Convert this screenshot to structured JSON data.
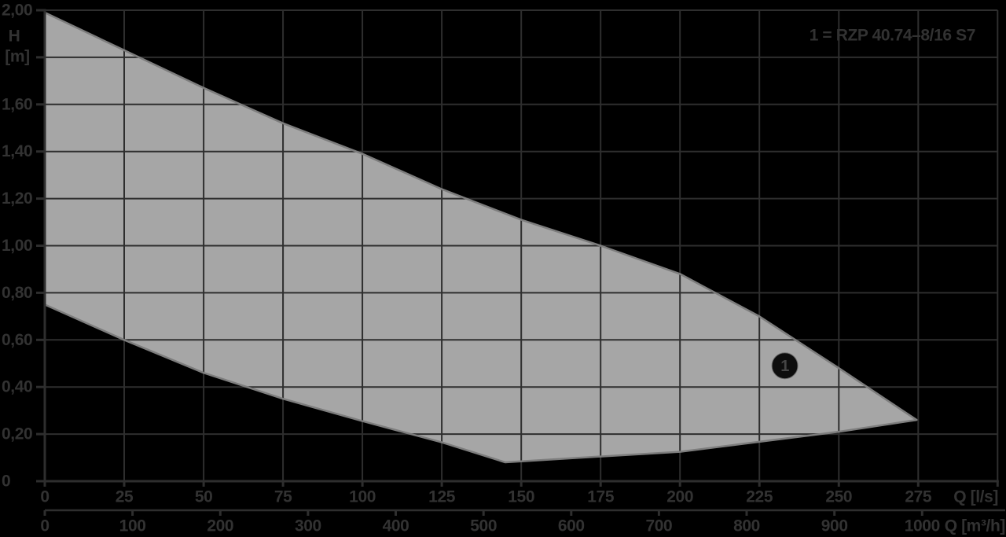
{
  "style": {
    "background": "#000000",
    "text": "#323232",
    "grid": "#2e2e2e",
    "axis": "#2e2e2e",
    "envelope_fill": "#a6a6a6",
    "envelope_stroke": "#7d7d7d",
    "marker_fill": "#0d0d0d",
    "marker_ring": "#6f6f6f",
    "marker_text": "#454545"
  },
  "chart_data": {
    "type": "area",
    "title": "",
    "description": "Pump operating envelope: head H [m] versus flow Q, dual flow axes in l/s and m³/h",
    "legend_text": "1 =  RZP 40.74–8/16 S7",
    "legend_entries": [
      {
        "id": "1",
        "label": "RZP 40.74–8/16 S7"
      }
    ],
    "grid": true,
    "y_axis": {
      "symbol": "H",
      "unit": "[m]",
      "range": [
        0,
        2.0
      ],
      "step": 0.2,
      "ticks": [
        {
          "h": 2.0,
          "label": "2,00"
        },
        {
          "h": 1.8,
          "label": ""
        },
        {
          "h": 1.6,
          "label": "1,60"
        },
        {
          "h": 1.4,
          "label": "1,40"
        },
        {
          "h": 1.2,
          "label": "1,20"
        },
        {
          "h": 1.0,
          "label": "1,00"
        },
        {
          "h": 0.8,
          "label": "0,80"
        },
        {
          "h": 0.6,
          "label": "0,60"
        },
        {
          "h": 0.4,
          "label": "0,40"
        },
        {
          "h": 0.2,
          "label": "0,20"
        },
        {
          "h": 0.0,
          "label": "0"
        }
      ]
    },
    "x_axis_primary": {
      "label": "Q [l/s]",
      "range": [
        0,
        300
      ],
      "step": 25,
      "ticks": [
        {
          "q": 0,
          "label": "0"
        },
        {
          "q": 25,
          "label": "25"
        },
        {
          "q": 50,
          "label": "50"
        },
        {
          "q": 75,
          "label": "75"
        },
        {
          "q": 100,
          "label": "100"
        },
        {
          "q": 125,
          "label": "125"
        },
        {
          "q": 150,
          "label": "150"
        },
        {
          "q": 175,
          "label": "175"
        },
        {
          "q": 200,
          "label": "200"
        },
        {
          "q": 225,
          "label": "225"
        },
        {
          "q": 250,
          "label": "250"
        },
        {
          "q": 275,
          "label": "275"
        },
        {
          "q": 300,
          "label": ""
        }
      ]
    },
    "x_axis_secondary": {
      "label": "Q [m³/h]",
      "range": [
        0,
        1080
      ],
      "step": 100,
      "ticks": [
        {
          "q": 0,
          "label": "0"
        },
        {
          "q": 100,
          "label": "100"
        },
        {
          "q": 200,
          "label": "200"
        },
        {
          "q": 300,
          "label": "300"
        },
        {
          "q": 400,
          "label": "400"
        },
        {
          "q": 500,
          "label": "500"
        },
        {
          "q": 600,
          "label": "600"
        },
        {
          "q": 700,
          "label": "700"
        },
        {
          "q": 800,
          "label": "800"
        },
        {
          "q": 900,
          "label": "900"
        },
        {
          "q": 1000,
          "label": "1000"
        }
      ]
    },
    "envelope": {
      "upper_curve_q_h": [
        [
          0,
          1.99
        ],
        [
          25,
          1.83
        ],
        [
          50,
          1.67
        ],
        [
          75,
          1.52
        ],
        [
          100,
          1.39
        ],
        [
          125,
          1.24
        ],
        [
          150,
          1.11
        ],
        [
          175,
          1.0
        ],
        [
          200,
          0.88
        ],
        [
          225,
          0.7
        ],
        [
          250,
          0.48
        ],
        [
          274.5,
          0.26
        ]
      ],
      "lower_curve_q_h": [
        [
          0,
          0.75
        ],
        [
          25,
          0.6
        ],
        [
          50,
          0.46
        ],
        [
          75,
          0.35
        ],
        [
          100,
          0.255
        ],
        [
          125,
          0.165
        ],
        [
          145,
          0.08
        ],
        [
          175,
          0.105
        ],
        [
          200,
          0.125
        ],
        [
          250,
          0.21
        ],
        [
          274.5,
          0.26
        ]
      ]
    },
    "marker": {
      "label": "1",
      "q_ls": 233,
      "h_m": 0.49
    }
  }
}
